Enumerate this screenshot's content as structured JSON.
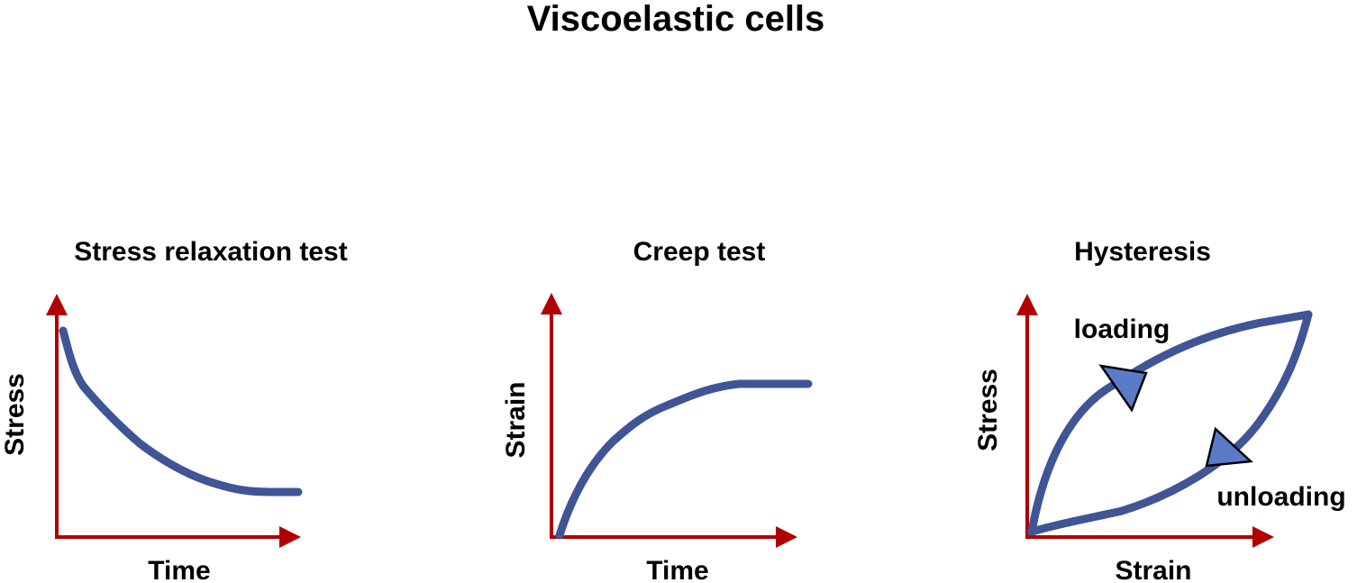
{
  "title": "Viscoelastic cells",
  "colors": {
    "axis": "#b00000",
    "curve": "#3f5596",
    "arrow_fill": "#5b7bc9"
  },
  "panels": {
    "stress_relaxation": {
      "title": "Stress relaxation test",
      "xlabel": "Time",
      "ylabel": "Stress"
    },
    "creep": {
      "title": "Creep test",
      "xlabel": "Time",
      "ylabel": "Strain"
    },
    "hysteresis": {
      "title": "Hysteresis",
      "xlabel": "Strain",
      "ylabel": "Stress",
      "loading_label": "loading",
      "unloading_label": "unloading"
    }
  }
}
